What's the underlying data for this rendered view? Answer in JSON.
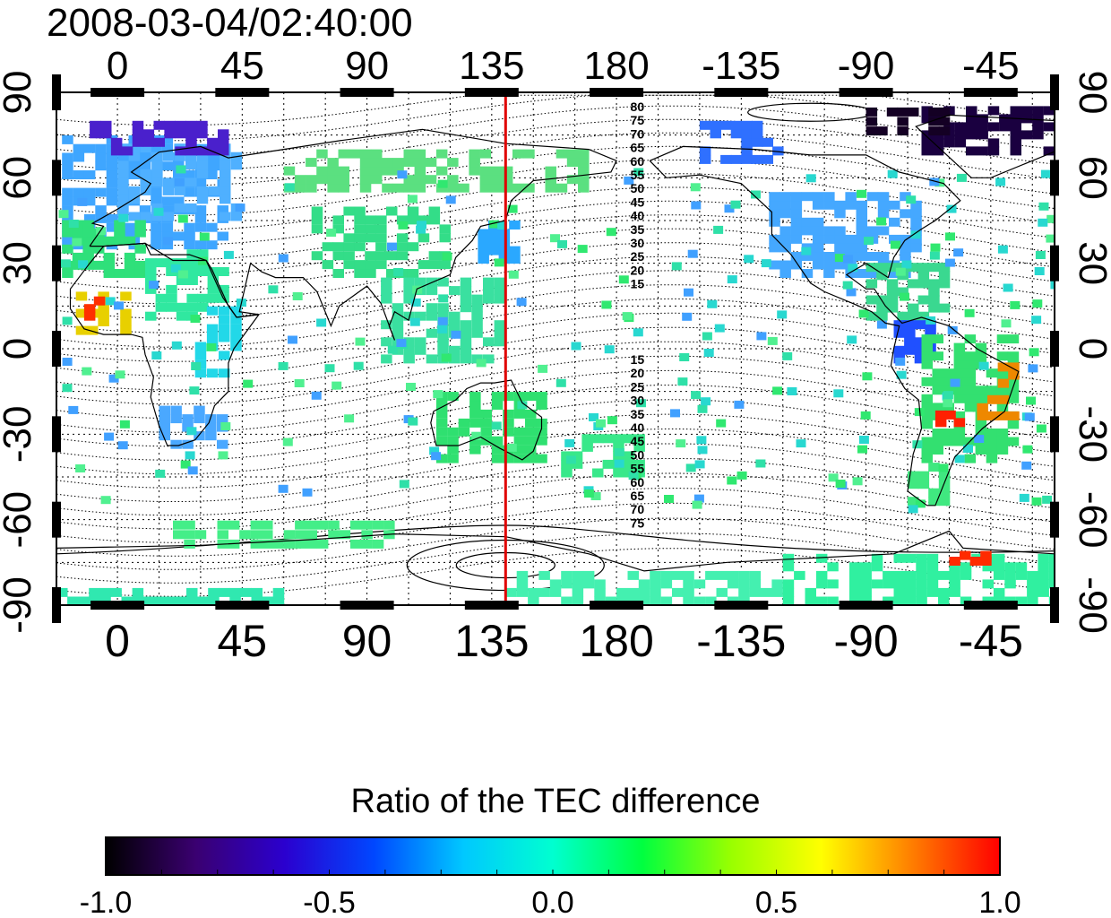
{
  "title": "2008-03-04/02:40:00",
  "map": {
    "lon_top_labels": [
      "0",
      "45",
      "90",
      "135",
      "180",
      "-135",
      "-90",
      "-45"
    ],
    "lon_bottom_labels": [
      "0",
      "45",
      "90",
      "135",
      "180",
      "-135",
      "-90",
      "-45"
    ],
    "lat_left_labels": [
      "90",
      "60",
      "30",
      "0",
      "-30",
      "-60",
      "-90"
    ],
    "lat_right_labels": [
      "90",
      "60",
      "30",
      "0",
      "-30",
      "-60",
      "-90"
    ],
    "meridian_marker_lon": 140,
    "meridian_marker_color": "#e00000",
    "contour_labels_north": [
      "80",
      "75",
      "70",
      "65",
      "60",
      "55",
      "50",
      "45",
      "40",
      "35",
      "30",
      "25",
      "20",
      "15"
    ],
    "contour_labels_south": [
      "15",
      "20",
      "25",
      "30",
      "35",
      "40",
      "45",
      "50",
      "55",
      "60",
      "65",
      "70",
      "75"
    ]
  },
  "colorbar": {
    "title": "Ratio of the TEC difference",
    "tick_labels": [
      "-1.0",
      "-0.5",
      "0.0",
      "0.5",
      "1.0"
    ],
    "range": [
      -1.0,
      1.0
    ],
    "colors": [
      "#000000",
      "#3a0070",
      "#2b00cf",
      "#0047ff",
      "#00c8ff",
      "#00ffd0",
      "#00ff40",
      "#9aff00",
      "#ffff00",
      "#ff8000",
      "#ff0000"
    ]
  }
}
